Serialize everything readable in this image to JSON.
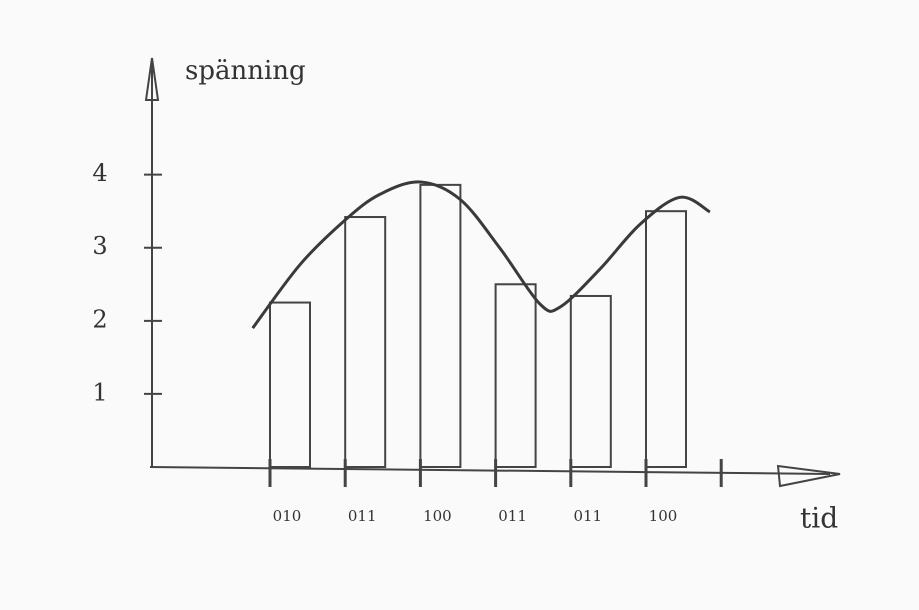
{
  "chart_data": {
    "type": "bar",
    "ylabel": "spänning",
    "xlabel": "tid",
    "categories": [
      "010",
      "011",
      "100",
      "011",
      "011",
      "100",
      null
    ],
    "values": [
      2.25,
      3.42,
      3.86,
      2.5,
      2.34,
      3.5,
      null
    ],
    "color": "#444",
    "ylim": [
      0,
      5.5
    ],
    "yticks": [
      1,
      2,
      3,
      4
    ],
    "curve": {
      "color": "#3a3a3a",
      "x": [
        -0.23,
        0.4,
        1.0,
        1.46,
        2.0,
        2.53,
        3.06,
        3.59,
        3.86,
        4.39,
        4.92,
        5.45,
        5.85
      ],
      "y": [
        1.9,
        2.77,
        3.38,
        3.73,
        3.9,
        3.66,
        2.99,
        2.23,
        2.19,
        2.71,
        3.32,
        3.69,
        3.49
      ]
    }
  }
}
